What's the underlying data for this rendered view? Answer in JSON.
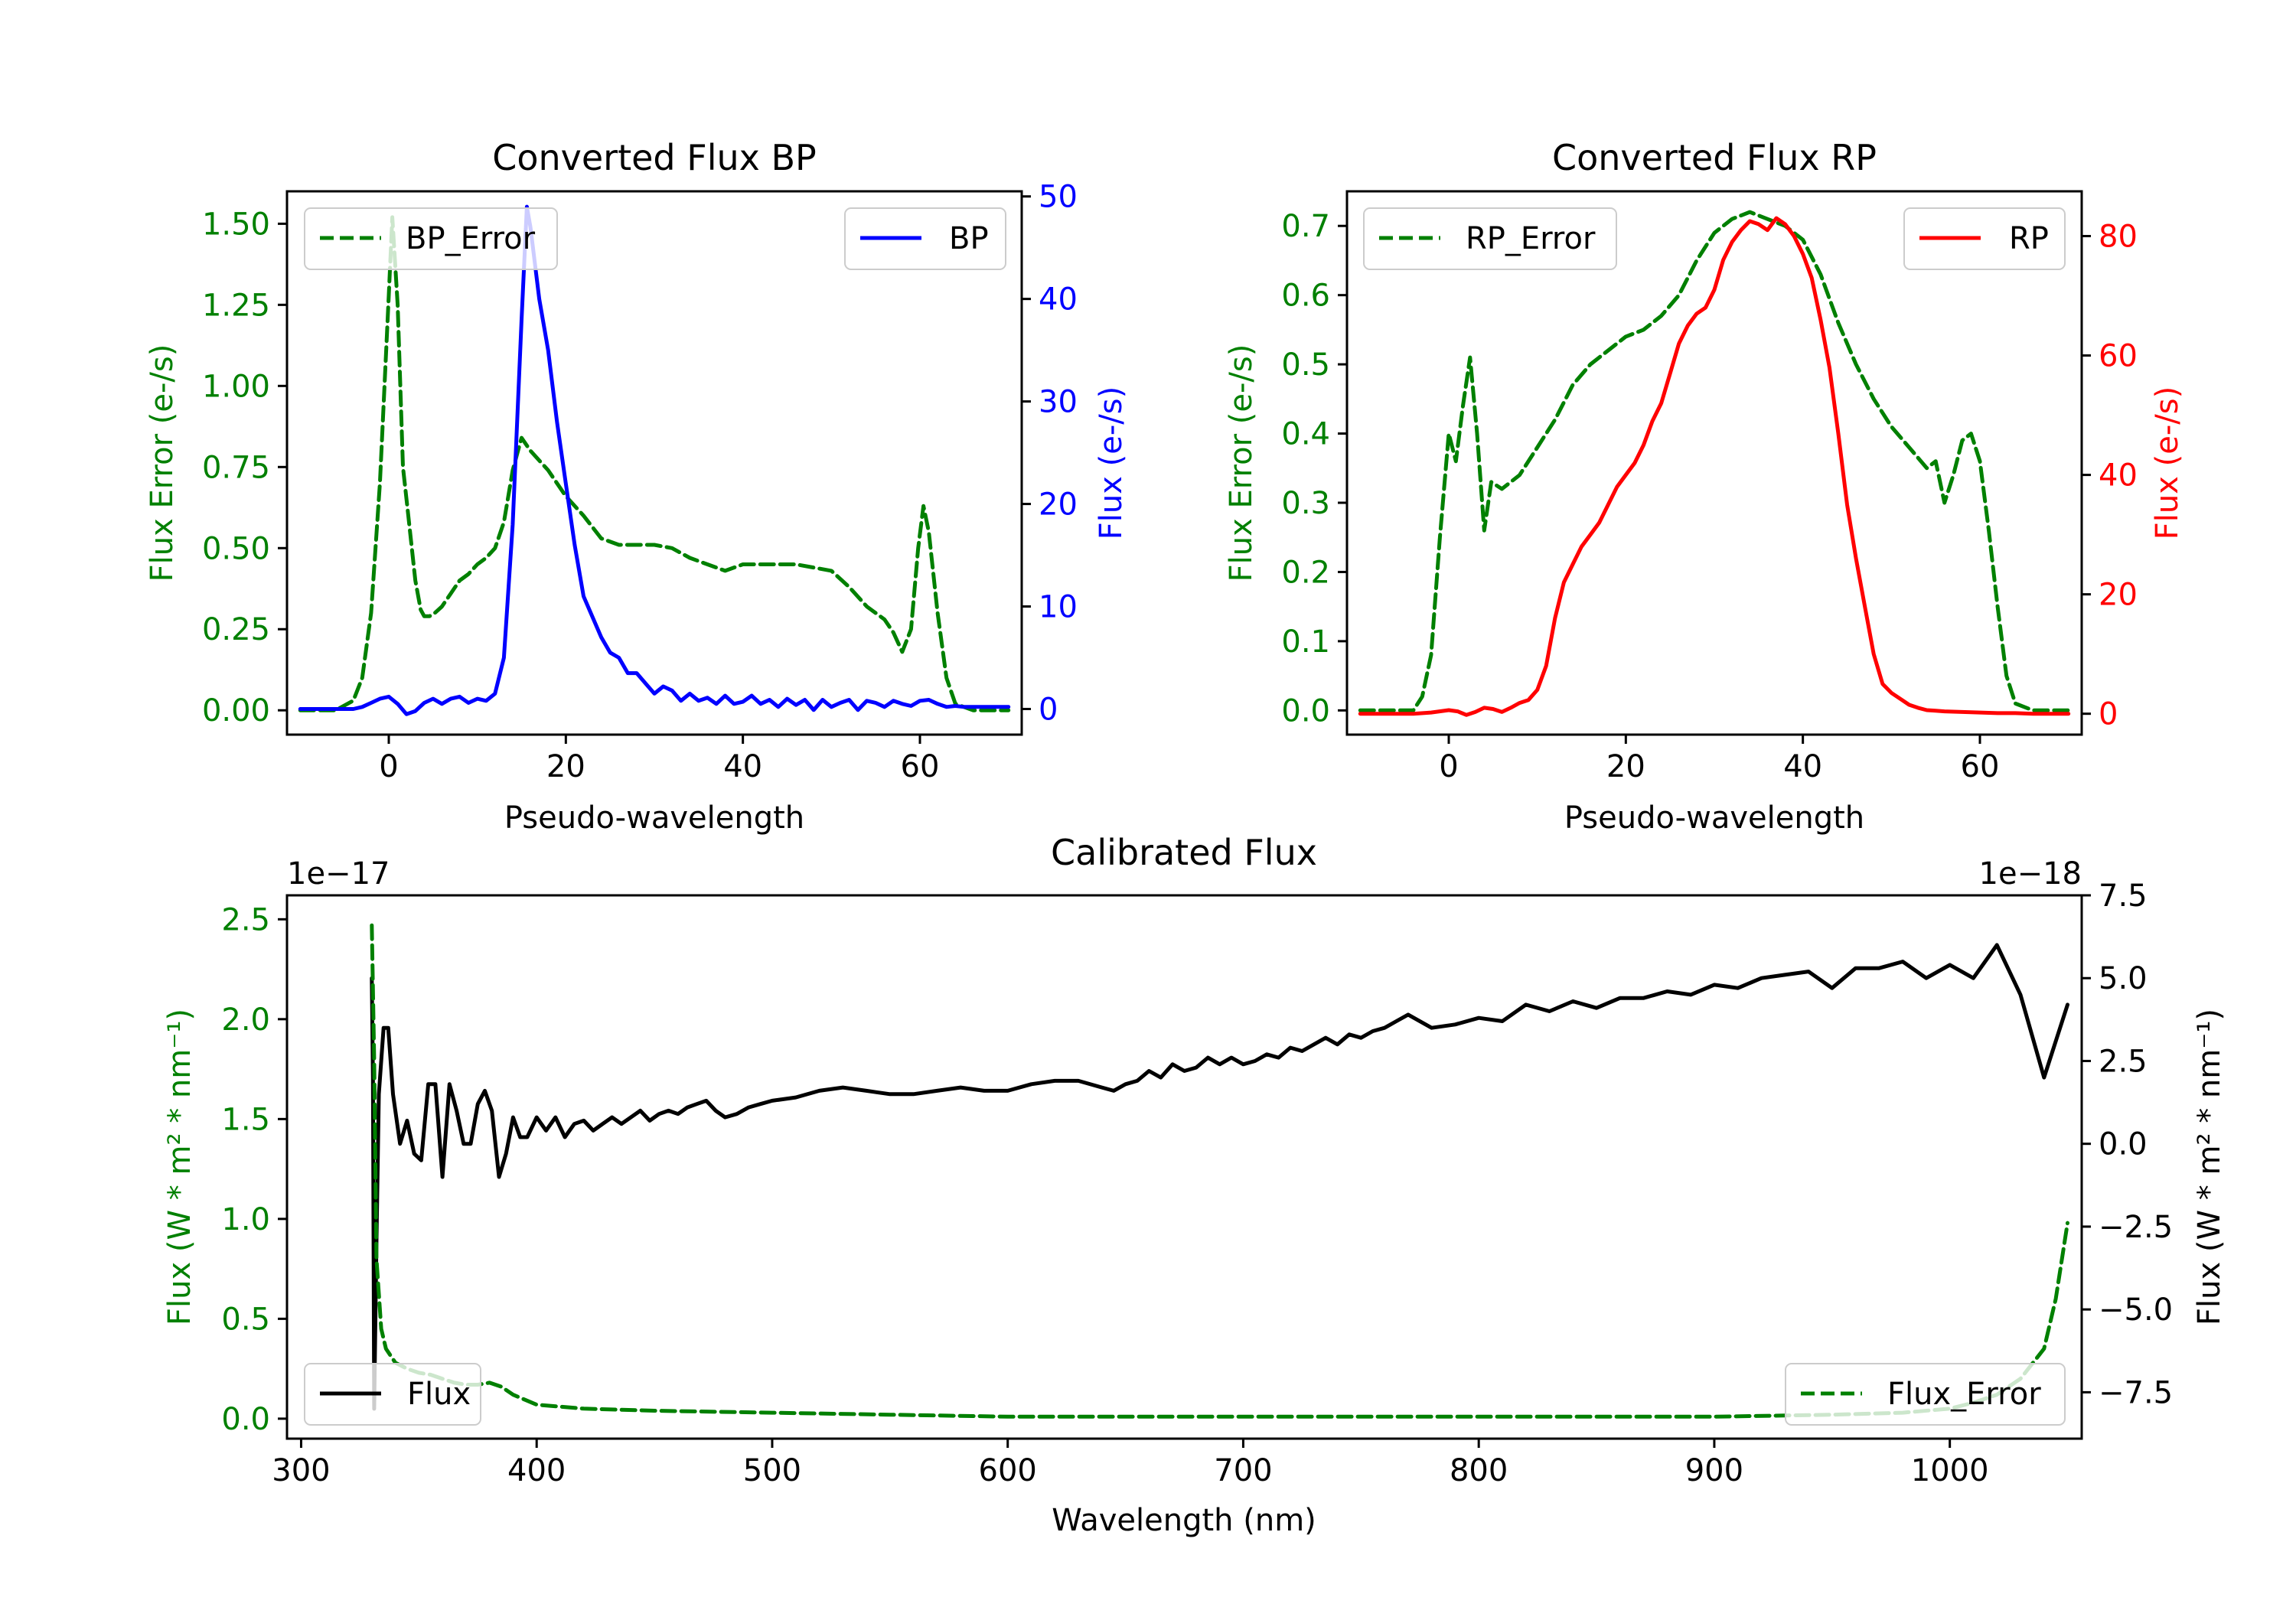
{
  "colors": {
    "green": "#008000",
    "blue": "#0000ff",
    "red": "#ff0000",
    "black": "#000000"
  },
  "chart_data": [
    {
      "type": "line",
      "title": "Converted Flux BP",
      "xlabel": "Pseudo-wavelength",
      "ylabel_left": "Flux Error (e-/s)",
      "ylabel_right": "Flux (e-/s)",
      "xlim": [
        -11.5,
        71.5
      ],
      "ylim_left": [
        -0.075,
        1.6
      ],
      "ylim_right": [
        -2.5,
        50.5
      ],
      "xticks": [
        0,
        20,
        40,
        60
      ],
      "yticks_left": [
        "0.00",
        "0.25",
        "0.50",
        "0.75",
        "1.00",
        "1.25",
        "1.50"
      ],
      "yticks_right": [
        "0",
        "10",
        "20",
        "30",
        "40",
        "50"
      ],
      "legend_left": "BP_Error",
      "legend_right": "BP",
      "series": [
        {
          "name": "BP_Error",
          "axis": "left",
          "color": "#008000",
          "style": "dashed",
          "x": [
            -10,
            -6,
            -4,
            -3,
            -2,
            -1,
            0,
            0.4,
            1,
            1.6,
            2.2,
            3,
            3.6,
            4,
            4.6,
            5.2,
            6,
            7,
            8,
            9,
            10,
            11,
            12,
            13,
            14,
            15,
            16,
            18,
            20,
            22,
            24,
            26,
            28,
            30,
            32,
            34,
            36,
            38,
            40,
            42,
            44,
            46,
            48,
            50,
            52,
            54,
            56,
            57,
            58,
            59,
            59.8,
            60.4,
            61,
            62,
            63,
            64,
            66,
            70
          ],
          "values": [
            0,
            0,
            0.03,
            0.1,
            0.3,
            0.7,
            1.28,
            1.52,
            1.25,
            0.75,
            0.6,
            0.4,
            0.31,
            0.29,
            0.29,
            0.3,
            0.32,
            0.36,
            0.4,
            0.42,
            0.45,
            0.47,
            0.5,
            0.58,
            0.74,
            0.84,
            0.8,
            0.74,
            0.66,
            0.6,
            0.53,
            0.51,
            0.51,
            0.51,
            0.5,
            0.47,
            0.45,
            0.43,
            0.45,
            0.45,
            0.45,
            0.45,
            0.44,
            0.43,
            0.38,
            0.32,
            0.28,
            0.24,
            0.18,
            0.25,
            0.5,
            0.63,
            0.55,
            0.3,
            0.1,
            0.02,
            0,
            0
          ]
        },
        {
          "name": "BP",
          "axis": "right",
          "color": "#0000ff",
          "style": "solid",
          "x": [
            -10,
            -5,
            -4,
            -3,
            -2,
            -1,
            0,
            1,
            2,
            3,
            4,
            5,
            6,
            7,
            8,
            9,
            10,
            11,
            12,
            13,
            14,
            15,
            15.6,
            16,
            17,
            18,
            19,
            20,
            21,
            22,
            23,
            24,
            25,
            26,
            27,
            28,
            29,
            30,
            31,
            32,
            33,
            34,
            35,
            36,
            37,
            38,
            39,
            40,
            41,
            42,
            43,
            44,
            45,
            46,
            47,
            48,
            49,
            50,
            51,
            52,
            53,
            54,
            55,
            56,
            57,
            58,
            59,
            60,
            61,
            62,
            63,
            64,
            65,
            66,
            67,
            68,
            69,
            70
          ],
          "values": [
            0,
            0,
            0,
            0.2,
            0.6,
            1.0,
            1.2,
            0.5,
            -0.5,
            -0.2,
            0.6,
            1.0,
            0.5,
            1.0,
            1.2,
            0.6,
            1.0,
            0.8,
            1.5,
            5,
            18,
            38,
            49,
            47,
            40,
            35,
            28,
            22,
            16,
            11,
            9,
            7,
            5.5,
            5,
            3.5,
            3.5,
            2.5,
            1.5,
            2.2,
            1.8,
            0.8,
            1.5,
            0.8,
            1.1,
            0.5,
            1.3,
            0.5,
            0.7,
            1.3,
            0.5,
            0.9,
            0.2,
            1.0,
            0.4,
            0.9,
            -0.1,
            0.9,
            0.2,
            0.6,
            0.9,
            -0.1,
            0.8,
            0.6,
            0.2,
            0.8,
            0.5,
            0.3,
            0.8,
            0.9,
            0.5,
            0.2,
            0.3,
            0.2,
            0.2,
            0.2,
            0.2,
            0.2,
            0.2
          ]
        }
      ]
    },
    {
      "type": "line",
      "title": "Converted Flux RP",
      "xlabel": "Pseudo-wavelength",
      "ylabel_left": "Flux Error (e-/s)",
      "ylabel_right": "Flux (e-/s)",
      "xlim": [
        -11.5,
        71.5
      ],
      "ylim_left": [
        -0.035,
        0.75
      ],
      "ylim_right": [
        -3.5,
        87.5
      ],
      "xticks": [
        0,
        20,
        40,
        60
      ],
      "yticks_left": [
        "0.0",
        "0.1",
        "0.2",
        "0.3",
        "0.4",
        "0.5",
        "0.6",
        "0.7"
      ],
      "yticks_right": [
        "0",
        "20",
        "40",
        "60",
        "80"
      ],
      "legend_left": "RP_Error",
      "legend_right": "RP",
      "series": [
        {
          "name": "RP_Error",
          "axis": "left",
          "color": "#008000",
          "style": "dashed",
          "x": [
            -10,
            -4,
            -3,
            -2,
            -1,
            0,
            0.8,
            1.6,
            2.4,
            3.2,
            4,
            4.8,
            6,
            8,
            10,
            12,
            14,
            16,
            18,
            20,
            22,
            24,
            26,
            28,
            30,
            32,
            34,
            36,
            38,
            40,
            42,
            44,
            46,
            48,
            50,
            52,
            54,
            55,
            56,
            57,
            58,
            59,
            60,
            61,
            62,
            63,
            64,
            66,
            70
          ],
          "values": [
            0,
            0,
            0.02,
            0.08,
            0.25,
            0.4,
            0.36,
            0.44,
            0.51,
            0.4,
            0.26,
            0.33,
            0.32,
            0.34,
            0.38,
            0.42,
            0.47,
            0.5,
            0.52,
            0.54,
            0.55,
            0.57,
            0.6,
            0.65,
            0.69,
            0.71,
            0.72,
            0.71,
            0.7,
            0.68,
            0.63,
            0.56,
            0.5,
            0.45,
            0.41,
            0.38,
            0.35,
            0.36,
            0.3,
            0.34,
            0.39,
            0.4,
            0.36,
            0.26,
            0.15,
            0.05,
            0.01,
            0,
            0
          ]
        },
        {
          "name": "RP",
          "axis": "right",
          "color": "#ff0000",
          "style": "solid",
          "x": [
            -10,
            -4,
            -2,
            0,
            1,
            2,
            3,
            4,
            5,
            6,
            7,
            8,
            9,
            10,
            11,
            12,
            13,
            14,
            15,
            16,
            17,
            18,
            19,
            20,
            21,
            22,
            23,
            24,
            25,
            26,
            27,
            28,
            29,
            30,
            31,
            32,
            33,
            34,
            35,
            36,
            37,
            38,
            39,
            40,
            41,
            42,
            43,
            44,
            45,
            46,
            47,
            48,
            49,
            50,
            51,
            52,
            53,
            54,
            55,
            56,
            58,
            60,
            62,
            64,
            66,
            70
          ],
          "values": [
            0,
            0,
            0.2,
            0.6,
            0.4,
            -0.2,
            0.3,
            1.0,
            0.8,
            0.3,
            1.0,
            1.8,
            2.3,
            4,
            8,
            16,
            22,
            25,
            28,
            30,
            32,
            35,
            38,
            40,
            42,
            45,
            49,
            52,
            57,
            62,
            65,
            67,
            68,
            71,
            76,
            79,
            81,
            82.5,
            82,
            81,
            83,
            82,
            80,
            77,
            73,
            66,
            58,
            47,
            35,
            26,
            18,
            10,
            5,
            3.5,
            2.5,
            1.5,
            1.0,
            0.6,
            0.5,
            0.4,
            0.3,
            0.2,
            0.1,
            0.1,
            0,
            0
          ]
        }
      ]
    },
    {
      "type": "line",
      "title": "Calibrated Flux",
      "xlabel": "Wavelength (nm)",
      "ylabel_left": "Flux (W * m² * nm⁻¹)",
      "ylabel_right": "Flux (W * m² * nm⁻¹)",
      "offset_left": "1e−17",
      "offset_right": "1e−18",
      "xlim": [
        294,
        1056
      ],
      "ylim_left": [
        -0.1,
        2.62
      ],
      "ylim_right": [
        -8.9,
        7.5
      ],
      "xticks": [
        300,
        400,
        500,
        600,
        700,
        800,
        900,
        1000
      ],
      "yticks_left": [
        "0.0",
        "0.5",
        "1.0",
        "1.5",
        "2.0",
        "2.5"
      ],
      "yticks_right": [
        "−7.5",
        "−5.0",
        "−2.5",
        "0.0",
        "2.5",
        "5.0",
        "7.5"
      ],
      "legend_left": "Flux",
      "legend_right": "Flux_Error",
      "series": [
        {
          "name": "Flux",
          "axis": "right",
          "color": "#000000",
          "style": "solid",
          "x": [
            330,
            330.5,
            331,
            332,
            333,
            335,
            337,
            339,
            342,
            345,
            348,
            351,
            354,
            357,
            360,
            363,
            366,
            369,
            372,
            375,
            378,
            381,
            384,
            387,
            390,
            393,
            396,
            400,
            404,
            408,
            412,
            416,
            420,
            424,
            428,
            432,
            436,
            440,
            444,
            448,
            452,
            456,
            460,
            464,
            468,
            472,
            476,
            480,
            485,
            490,
            495,
            500,
            510,
            520,
            530,
            540,
            550,
            560,
            570,
            580,
            590,
            600,
            610,
            620,
            630,
            640,
            645,
            650,
            655,
            660,
            665,
            670,
            675,
            680,
            685,
            690,
            695,
            700,
            705,
            710,
            715,
            720,
            725,
            730,
            735,
            740,
            745,
            750,
            755,
            760,
            765,
            770,
            780,
            790,
            800,
            810,
            820,
            830,
            840,
            850,
            860,
            870,
            880,
            890,
            900,
            910,
            920,
            930,
            940,
            950,
            960,
            970,
            980,
            990,
            1000,
            1010,
            1020,
            1030,
            1040,
            1050
          ],
          "values": [
            5.0,
            2.0,
            -8.0,
            -3.0,
            1.5,
            3.5,
            3.5,
            1.5,
            0,
            0.7,
            -0.3,
            -0.5,
            1.8,
            1.8,
            -1.0,
            1.8,
            1.0,
            0,
            0,
            1.2,
            1.6,
            1.0,
            -1.0,
            -0.3,
            0.8,
            0.2,
            0.2,
            0.8,
            0.4,
            0.8,
            0.2,
            0.6,
            0.7,
            0.4,
            0.6,
            0.8,
            0.6,
            0.8,
            1.0,
            0.7,
            0.9,
            1.0,
            0.9,
            1.1,
            1.2,
            1.3,
            1.0,
            0.8,
            0.9,
            1.1,
            1.2,
            1.3,
            1.4,
            1.6,
            1.7,
            1.6,
            1.5,
            1.5,
            1.6,
            1.7,
            1.6,
            1.6,
            1.8,
            1.9,
            1.9,
            1.7,
            1.6,
            1.8,
            1.9,
            2.2,
            2.0,
            2.4,
            2.2,
            2.3,
            2.6,
            2.4,
            2.6,
            2.4,
            2.5,
            2.7,
            2.6,
            2.9,
            2.8,
            3.0,
            3.2,
            3.0,
            3.3,
            3.2,
            3.4,
            3.5,
            3.7,
            3.9,
            3.5,
            3.6,
            3.8,
            3.7,
            4.2,
            4.0,
            4.3,
            4.1,
            4.4,
            4.4,
            4.6,
            4.5,
            4.8,
            4.7,
            5.0,
            5.1,
            5.2,
            4.7,
            5.3,
            5.3,
            5.5,
            5.0,
            5.4,
            5.0,
            6.0,
            4.5,
            2.0,
            4.2
          ],
          "data_note": "right axis scaled by 1e-18"
        },
        {
          "name": "Flux_Error",
          "axis": "left",
          "color": "#008000",
          "style": "dashed",
          "x": [
            330,
            331,
            332,
            334,
            336,
            340,
            345,
            350,
            355,
            360,
            365,
            370,
            375,
            380,
            385,
            390,
            400,
            420,
            450,
            500,
            550,
            600,
            640,
            660,
            700,
            800,
            900,
            950,
            980,
            1000,
            1010,
            1020,
            1030,
            1040,
            1045,
            1050
          ],
          "values": [
            2.47,
            1.8,
            0.8,
            0.45,
            0.35,
            0.28,
            0.25,
            0.23,
            0.22,
            0.2,
            0.18,
            0.17,
            0.17,
            0.18,
            0.16,
            0.12,
            0.07,
            0.05,
            0.04,
            0.03,
            0.02,
            0.01,
            0.01,
            0.01,
            0.01,
            0.01,
            0.01,
            0.02,
            0.03,
            0.05,
            0.08,
            0.12,
            0.2,
            0.35,
            0.6,
            0.98
          ],
          "data_note": "left axis scaled by 1e-17"
        }
      ]
    }
  ]
}
